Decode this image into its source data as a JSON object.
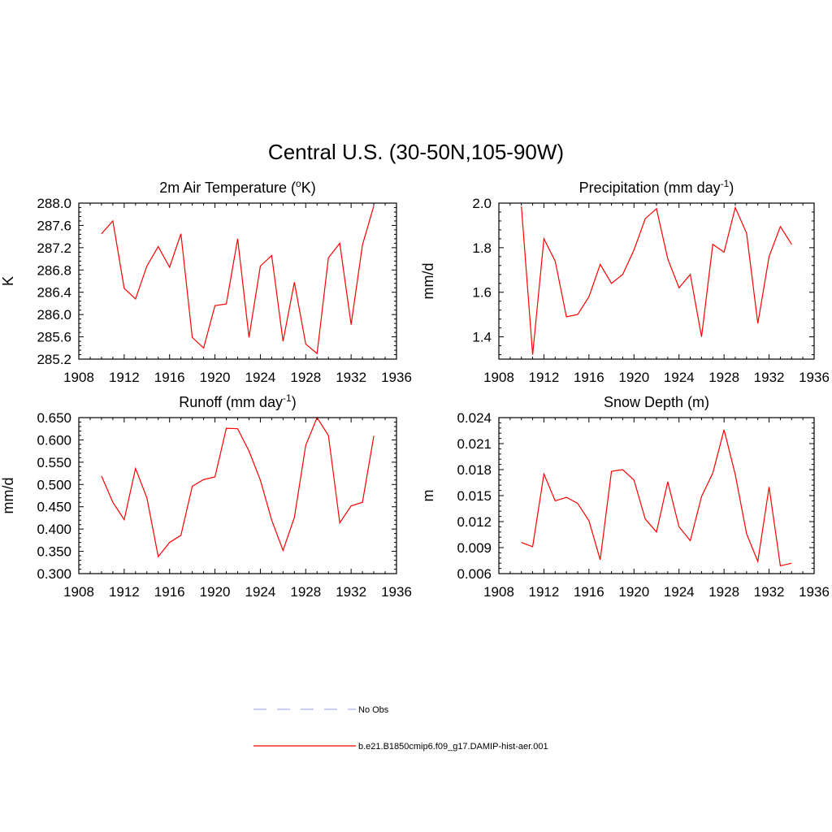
{
  "figure": {
    "title": "Central U.S. (30-50N,105-90W)"
  },
  "legend": {
    "entries": [
      {
        "label": "No Obs",
        "color": "#aab0e8",
        "style": "dashed"
      },
      {
        "label": "b.e21.B1850cmip6.f09_g17.DAMIP-hist-aer.001",
        "color": "#ff0000",
        "style": "solid"
      }
    ]
  },
  "chart_data": [
    {
      "type": "line",
      "title_prefix": "2m Air Temperature (",
      "title_sup": "o",
      "title_suffix": "K)",
      "ylabel": "K",
      "xlim": [
        1908,
        1936
      ],
      "ylim": [
        285.2,
        288.0
      ],
      "x_ticks": [
        1908,
        1912,
        1916,
        1920,
        1924,
        1928,
        1932,
        1936
      ],
      "y_ticks": [
        "285.2",
        "285.6",
        "286.0",
        "286.4",
        "286.8",
        "287.2",
        "287.6",
        "288.0"
      ],
      "series": [
        {
          "color": "#ff0000",
          "x": [
            1910,
            1911,
            1912,
            1913,
            1914,
            1915,
            1916,
            1917,
            1918,
            1919,
            1920,
            1921,
            1922,
            1923,
            1924,
            1925,
            1926,
            1927,
            1928,
            1929,
            1930,
            1931,
            1932,
            1933,
            1934
          ],
          "y": [
            287.45,
            287.68,
            286.47,
            286.28,
            286.87,
            287.22,
            286.85,
            287.45,
            285.59,
            285.4,
            286.16,
            286.19,
            287.36,
            285.59,
            286.87,
            287.06,
            285.52,
            286.58,
            285.47,
            285.3,
            287.02,
            287.28,
            285.82,
            287.25,
            287.95
          ]
        }
      ]
    },
    {
      "type": "line",
      "title_prefix": "Precipitation (mm day",
      "title_sup": "-1",
      "title_suffix": ")",
      "ylabel": "mm/d",
      "xlim": [
        1908,
        1936
      ],
      "ylim": [
        1.3,
        2.0
      ],
      "x_ticks": [
        1908,
        1912,
        1916,
        1920,
        1924,
        1928,
        1932,
        1936
      ],
      "y_ticks": [
        "1.4",
        "1.6",
        "1.8",
        "2.0"
      ],
      "series": [
        {
          "color": "#ff0000",
          "x": [
            1910,
            1911,
            1912,
            1913,
            1914,
            1915,
            1916,
            1917,
            1918,
            1919,
            1920,
            1921,
            1922,
            1923,
            1924,
            1925,
            1926,
            1927,
            1928,
            1929,
            1930,
            1931,
            1932,
            1933,
            1934
          ],
          "y": [
            1.985,
            1.32,
            1.84,
            1.74,
            1.49,
            1.5,
            1.58,
            1.725,
            1.64,
            1.68,
            1.79,
            1.93,
            1.975,
            1.75,
            1.62,
            1.68,
            1.4,
            1.815,
            1.78,
            1.98,
            1.865,
            1.46,
            1.76,
            1.895,
            1.815
          ]
        }
      ]
    },
    {
      "type": "line",
      "title_prefix": "Runoff (mm day",
      "title_sup": "-1",
      "title_suffix": ")",
      "ylabel": "mm/d",
      "xlim": [
        1908,
        1936
      ],
      "ylim": [
        0.3,
        0.65
      ],
      "x_ticks": [
        1908,
        1912,
        1916,
        1920,
        1924,
        1928,
        1932,
        1936
      ],
      "y_ticks": [
        "0.300",
        "0.350",
        "0.400",
        "0.450",
        "0.500",
        "0.550",
        "0.600",
        "0.650"
      ],
      "series": [
        {
          "color": "#ff0000",
          "x": [
            1910,
            1911,
            1912,
            1913,
            1914,
            1915,
            1916,
            1917,
            1918,
            1919,
            1920,
            1921,
            1922,
            1923,
            1924,
            1925,
            1926,
            1927,
            1928,
            1929,
            1930,
            1931,
            1932,
            1933,
            1934
          ],
          "y": [
            0.519,
            0.46,
            0.421,
            0.536,
            0.47,
            0.338,
            0.37,
            0.386,
            0.496,
            0.511,
            0.517,
            0.626,
            0.625,
            0.575,
            0.51,
            0.42,
            0.352,
            0.426,
            0.588,
            0.65,
            0.61,
            0.414,
            0.452,
            0.46,
            0.609
          ]
        }
      ]
    },
    {
      "type": "line",
      "title_prefix": "Snow Depth (m)",
      "title_sup": "",
      "title_suffix": "",
      "ylabel": "m",
      "xlim": [
        1908,
        1936
      ],
      "ylim": [
        0.006,
        0.024
      ],
      "x_ticks": [
        1908,
        1912,
        1916,
        1920,
        1924,
        1928,
        1932,
        1936
      ],
      "y_ticks": [
        "0.006",
        "0.009",
        "0.012",
        "0.015",
        "0.018",
        "0.021",
        "0.024"
      ],
      "series": [
        {
          "color": "#ff0000",
          "x": [
            1910,
            1911,
            1912,
            1913,
            1914,
            1915,
            1916,
            1917,
            1918,
            1919,
            1920,
            1921,
            1922,
            1923,
            1924,
            1925,
            1926,
            1927,
            1928,
            1929,
            1930,
            1931,
            1932,
            1933,
            1934
          ],
          "y": [
            0.0096,
            0.0091,
            0.0175,
            0.0144,
            0.0148,
            0.0141,
            0.0121,
            0.0076,
            0.0178,
            0.018,
            0.0168,
            0.0123,
            0.0108,
            0.0166,
            0.0114,
            0.0098,
            0.0149,
            0.0176,
            0.0226,
            0.0174,
            0.0106,
            0.0074,
            0.016,
            0.0069,
            0.0072
          ]
        }
      ]
    }
  ]
}
